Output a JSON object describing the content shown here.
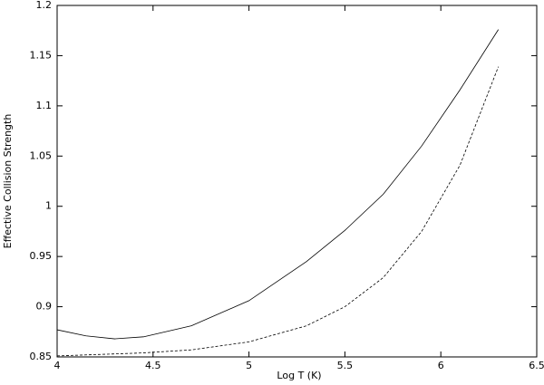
{
  "chart_data": {
    "type": "line",
    "x_label": "Log T (K)",
    "y_label": "Effective Collision Strength",
    "x": [
      4.0,
      4.15,
      4.3,
      4.45,
      4.7,
      5.0,
      5.3,
      5.5,
      5.7,
      5.9,
      6.1,
      6.3
    ],
    "series": [
      {
        "color": "#000000",
        "dashed": false,
        "values": [
          0.877,
          0.871,
          0.868,
          0.87,
          0.881,
          0.906,
          0.945,
          0.976,
          1.012,
          1.06,
          1.116,
          1.176
        ]
      },
      {
        "color": "#000000",
        "dashed": true,
        "values": [
          0.851,
          0.852,
          0.853,
          0.854,
          0.857,
          0.865,
          0.881,
          0.9,
          0.929,
          0.975,
          1.041,
          1.139
        ]
      }
    ],
    "xlim": [
      4,
      6.5
    ],
    "xticks": [
      4,
      4.5,
      5,
      5.5,
      6,
      6.5
    ],
    "ylim": [
      0.85,
      1.2
    ],
    "yticks": [
      0.85,
      0.9,
      0.95,
      1,
      1.05,
      1.1,
      1.15,
      1.2
    ],
    "grid": false
  }
}
